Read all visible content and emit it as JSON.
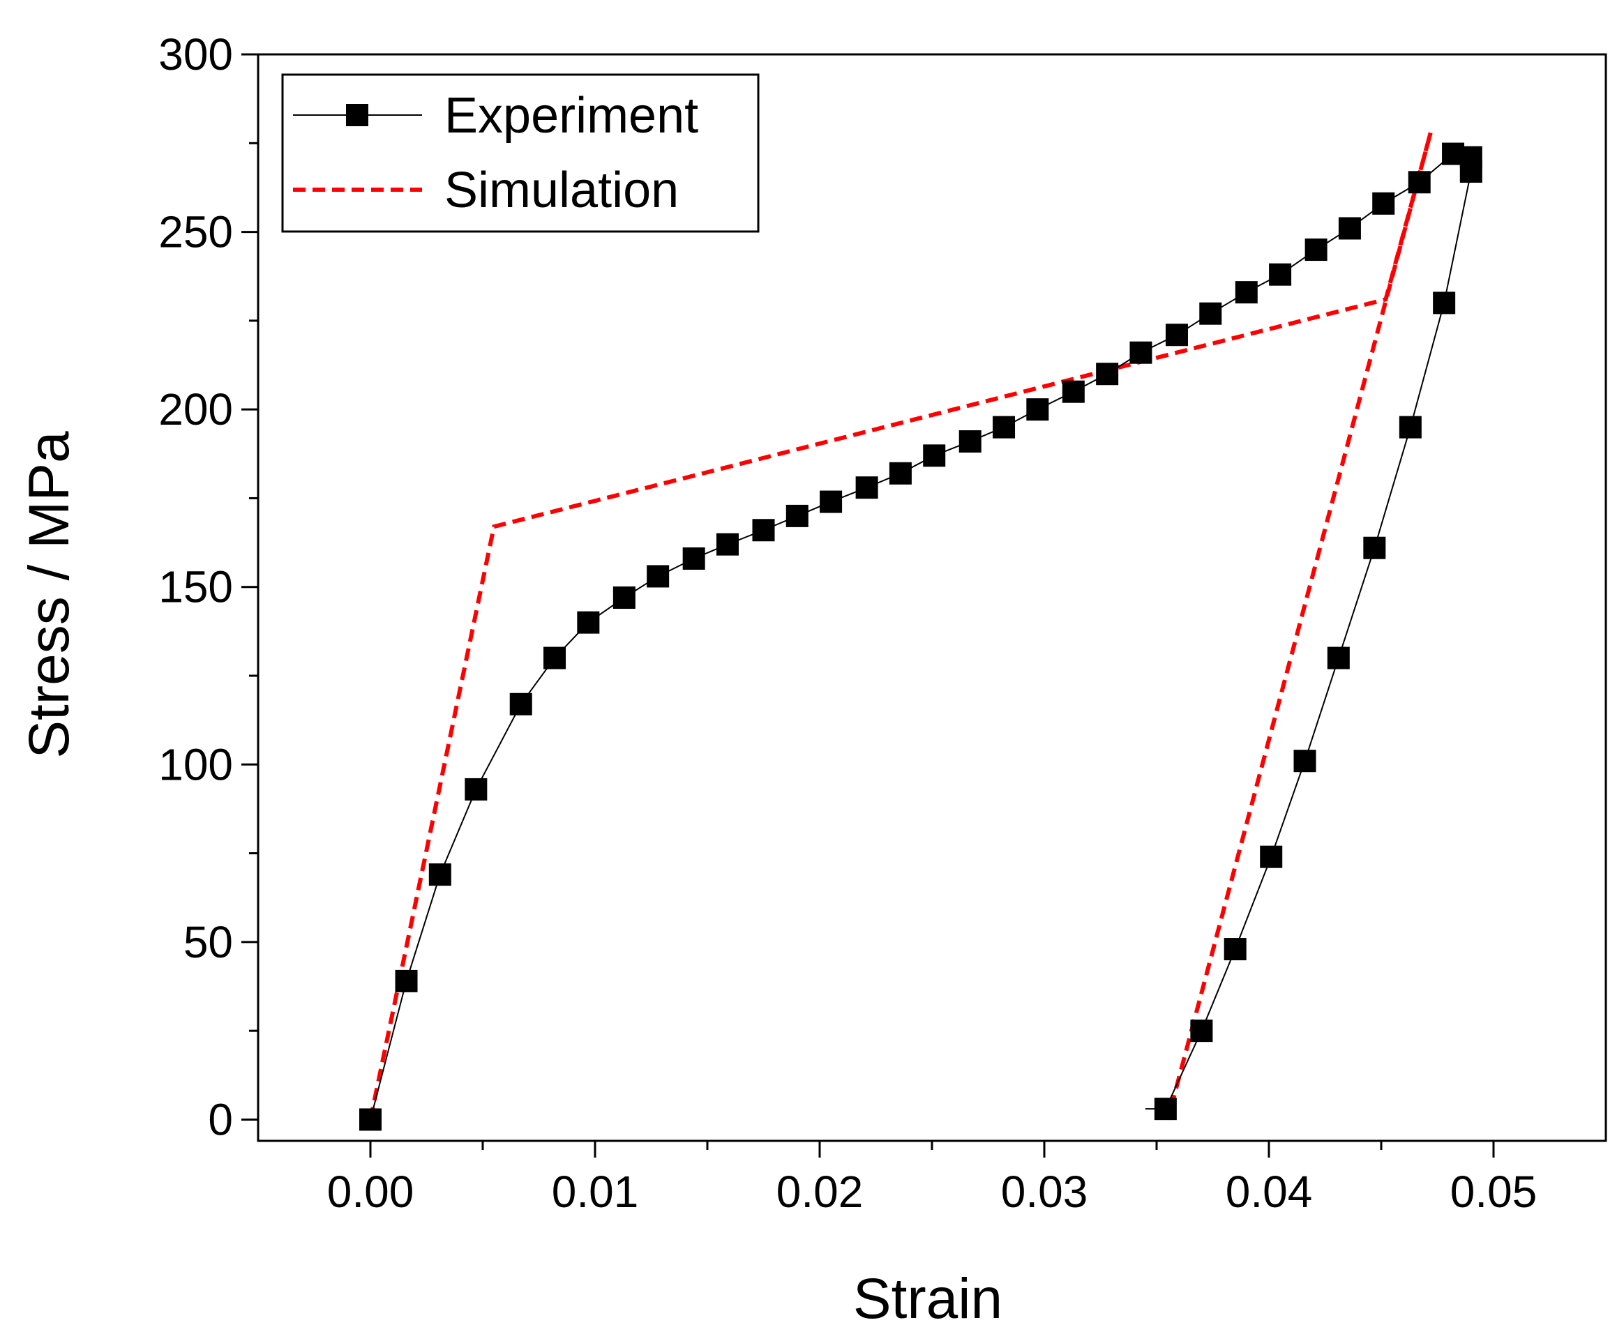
{
  "chart_data": {
    "type": "line",
    "title": "",
    "xlabel": "Strain",
    "ylabel": "Stress / MPa",
    "xlim": [
      -0.005,
      0.055
    ],
    "ylim": [
      -6,
      300
    ],
    "xticks": [
      0.0,
      0.01,
      0.02,
      0.03,
      0.04,
      0.05
    ],
    "xtick_labels": [
      "0.00",
      "0.01",
      "0.02",
      "0.03",
      "0.04",
      "0.05"
    ],
    "yticks": [
      0,
      50,
      100,
      150,
      200,
      250,
      300
    ],
    "ytick_labels": [
      "0",
      "50",
      "100",
      "150",
      "200",
      "250",
      "300"
    ],
    "grid": false,
    "legend_position": "top-left",
    "colors": {
      "experiment": "#000000",
      "simulation": "#ff0000"
    },
    "series": [
      {
        "name": "Experiment",
        "style": "solid line with square markers",
        "x": [
          0.0,
          0.0016,
          0.0031,
          0.0047,
          0.0067,
          0.0082,
          0.0097,
          0.0113,
          0.0128,
          0.0144,
          0.0159,
          0.0175,
          0.019,
          0.0205,
          0.0221,
          0.0236,
          0.0251,
          0.0267,
          0.0282,
          0.0297,
          0.0313,
          0.0328,
          0.0343,
          0.0359,
          0.0374,
          0.039,
          0.0405,
          0.0421,
          0.0436,
          0.0451,
          0.0467,
          0.0482,
          0.049,
          0.049,
          0.0478,
          0.0463,
          0.0447,
          0.0431,
          0.0416,
          0.0401,
          0.0385,
          0.037,
          0.0354
        ],
        "y": [
          0,
          39,
          69,
          93,
          117,
          130,
          140,
          147,
          153,
          158,
          162,
          166,
          170,
          174,
          178,
          182,
          187,
          191,
          195,
          200,
          205,
          210,
          216,
          221,
          227,
          233,
          238,
          245,
          251,
          258,
          264,
          272,
          271,
          267,
          230,
          195,
          161,
          130,
          101,
          74,
          48,
          25,
          3
        ],
        "values": [
          0,
          39,
          69,
          93,
          117,
          130,
          140,
          147,
          153,
          158,
          162,
          166,
          170,
          174,
          178,
          182,
          187,
          191,
          195,
          200,
          205,
          210,
          216,
          221,
          227,
          233,
          238,
          245,
          251,
          258,
          264,
          272,
          271,
          267,
          230,
          195,
          161,
          130,
          101,
          74,
          48,
          25,
          3
        ]
      },
      {
        "name": "Simulation",
        "style": "red dashed line",
        "x": [
          0.0,
          0.0055,
          0.0452,
          0.0472,
          0.0355
        ],
        "y": [
          0,
          167,
          231,
          278,
          0
        ],
        "values": [
          0,
          167,
          231,
          278,
          0
        ]
      }
    ]
  }
}
